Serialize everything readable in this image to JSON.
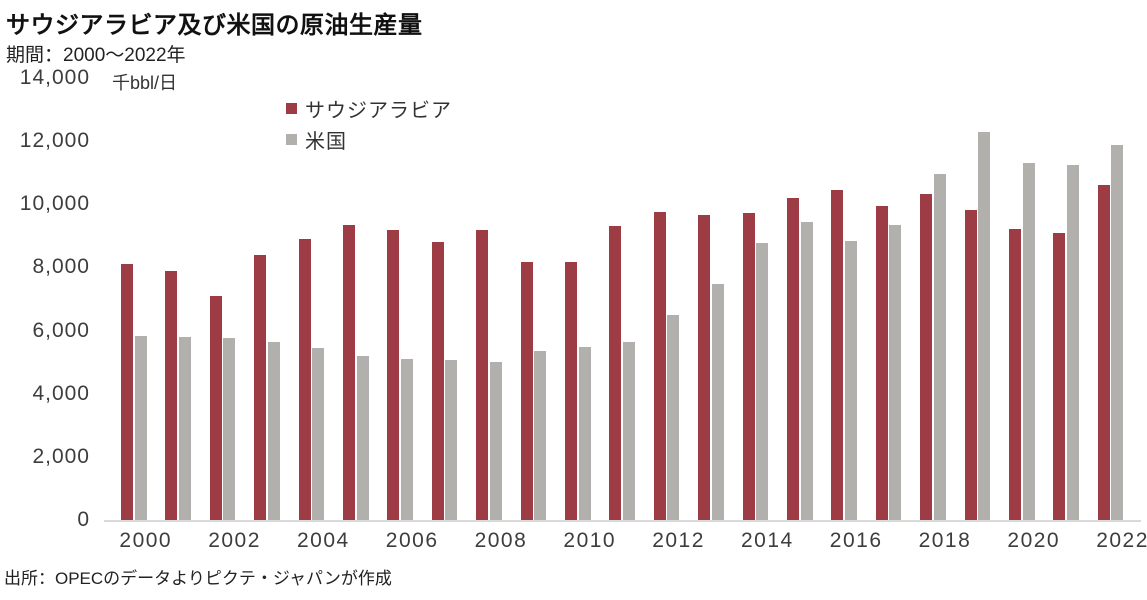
{
  "header": {
    "title": "サウジアラビア及び米国の原油生産量",
    "subtitle": "期間：2000～2022年"
  },
  "unit_label": "千bbl/日",
  "legend": [
    {
      "label": "サウジアラビア",
      "color": "#9d3c44"
    },
    {
      "label": "米国",
      "color": "#b1b0ad"
    }
  ],
  "footer": {
    "source": "出所：OPECのデータよりピクテ・ジャパンが作成"
  },
  "chart_data": {
    "type": "bar",
    "title": "サウジアラビア及び米国の原油生産量",
    "xlabel": "",
    "ylabel": "千bbl/日",
    "ylim": [
      0,
      14000
    ],
    "yticks": [
      0,
      2000,
      4000,
      6000,
      8000,
      10000,
      12000,
      14000
    ],
    "xtick_label_step": 2,
    "grid": false,
    "legend_position": "top-left-inside",
    "categories": [
      2000,
      2001,
      2002,
      2003,
      2004,
      2005,
      2006,
      2007,
      2008,
      2009,
      2010,
      2011,
      2012,
      2013,
      2014,
      2015,
      2016,
      2017,
      2018,
      2019,
      2020,
      2021,
      2022
    ],
    "series": [
      {
        "name": "サウジアラビア",
        "color": "#9d3c44",
        "values": [
          8100,
          7900,
          7100,
          8400,
          8900,
          9350,
          9200,
          8820,
          9200,
          8180,
          8170,
          9300,
          9760,
          9650,
          9710,
          10200,
          10460,
          9950,
          10310,
          9820,
          9210,
          9100,
          10600
        ]
      },
      {
        "name": "米国",
        "color": "#b1b0ad",
        "values": [
          5830,
          5800,
          5750,
          5650,
          5450,
          5180,
          5090,
          5080,
          5000,
          5350,
          5480,
          5650,
          6500,
          7470,
          8770,
          9430,
          8840,
          9350,
          10960,
          12300,
          11310,
          11250,
          11880
        ]
      }
    ]
  }
}
